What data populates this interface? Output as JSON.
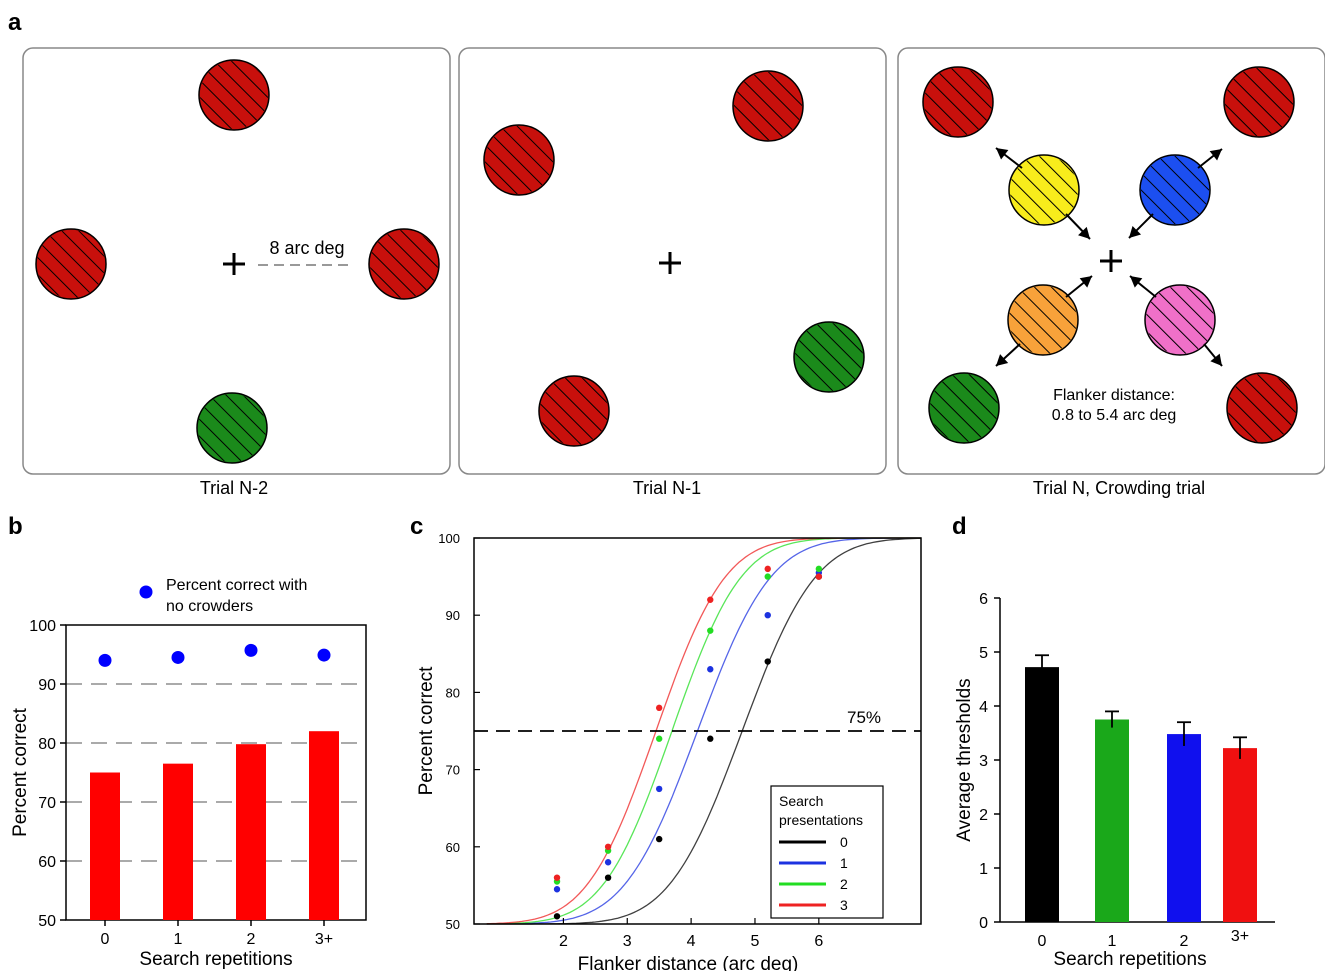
{
  "panels": {
    "a": {
      "label": "a",
      "trial_labels": [
        "Trial N-2",
        "Trial N-1",
        "Trial N, Crowding trial"
      ],
      "distance_label": "8 arc deg",
      "flanker_text": [
        "Flanker distance:",
        "0.8 to 5.4 arc deg"
      ],
      "colors": {
        "target_red": "#c8100c",
        "target_green": "#1b8a1b",
        "flanker_yellow": "#f8ec1c",
        "flanker_blue": "#1c4ff0",
        "flanker_orange": "#f8a23a",
        "flanker_pink": "#f070c8"
      }
    },
    "b": {
      "label": "b"
    },
    "c": {
      "label": "c"
    },
    "d": {
      "label": "d"
    }
  },
  "chart_data": [
    {
      "type": "bar",
      "title": "",
      "xlabel": "Search repetitions",
      "ylabel": "Percent correct",
      "ylim": [
        50,
        100
      ],
      "yticks": [
        50,
        60,
        70,
        80,
        90,
        100
      ],
      "categories": [
        "0",
        "1",
        "2",
        "3+"
      ],
      "series": [
        {
          "values": [
            75,
            76.5,
            79.8,
            82
          ],
          "color": "#ff0000"
        },
        {
          "name": "Percent correct with no crowders",
          "values": [
            94,
            94.5,
            95.7,
            94.9
          ],
          "color": "#0000ff"
        }
      ],
      "legend": [
        "Percent correct with",
        "no crowders"
      ],
      "legend_position": "top",
      "grid": "dashed at 60, 70, 80, 90"
    },
    {
      "type": "line",
      "title": "",
      "xlabel": "Flanker distance (arc deg)",
      "ylabel": "Percent correct",
      "xlim": [
        0.6,
        7.6
      ],
      "ylim": [
        50,
        100
      ],
      "xticks": [
        2,
        3,
        4,
        5,
        6
      ],
      "yticks": [
        50,
        60,
        70,
        80,
        90,
        100
      ],
      "reference_line": {
        "y": 75,
        "label": "75%"
      },
      "legend_title": [
        "Search",
        "presentations"
      ],
      "legend_position": "bottom-right",
      "series": [
        {
          "name": "0",
          "color": "#000000",
          "mu": 4.8,
          "s": 0.9,
          "x": [
            1.9,
            2.7,
            3.5,
            4.3,
            5.2,
            6.0
          ],
          "y": [
            51,
            56,
            61,
            74,
            84,
            95
          ]
        },
        {
          "name": "1",
          "color": "#1c32e0",
          "mu": 4.1,
          "s": 0.9,
          "x": [
            1.9,
            2.7,
            3.5,
            4.3,
            5.2,
            6.0
          ],
          "y": [
            54.5,
            58,
            67.5,
            83,
            90,
            95.5
          ]
        },
        {
          "name": "2",
          "color": "#22dd22",
          "mu": 3.7,
          "s": 0.85,
          "x": [
            1.9,
            2.7,
            3.5,
            4.3,
            5.2,
            6.0
          ],
          "y": [
            55.5,
            59.5,
            74,
            88,
            95,
            96
          ]
        },
        {
          "name": "3",
          "color": "#ee2222",
          "mu": 3.45,
          "s": 0.85,
          "x": [
            1.9,
            2.7,
            3.5,
            4.3,
            5.2,
            6.0
          ],
          "y": [
            56,
            60,
            78,
            92,
            96,
            95
          ]
        }
      ]
    },
    {
      "type": "bar",
      "title": "",
      "xlabel": "Search repetitions",
      "ylabel": "Average thresholds",
      "ylim": [
        0,
        6
      ],
      "yticks": [
        0,
        1,
        2,
        3,
        4,
        5,
        6
      ],
      "categories": [
        "0",
        "1",
        "2",
        "3+"
      ],
      "values": [
        4.72,
        3.75,
        3.48,
        3.22
      ],
      "errors": [
        0.22,
        0.15,
        0.22,
        0.2
      ],
      "colors": [
        "#000000",
        "#1aa81a",
        "#1010ee",
        "#f01010"
      ]
    }
  ]
}
